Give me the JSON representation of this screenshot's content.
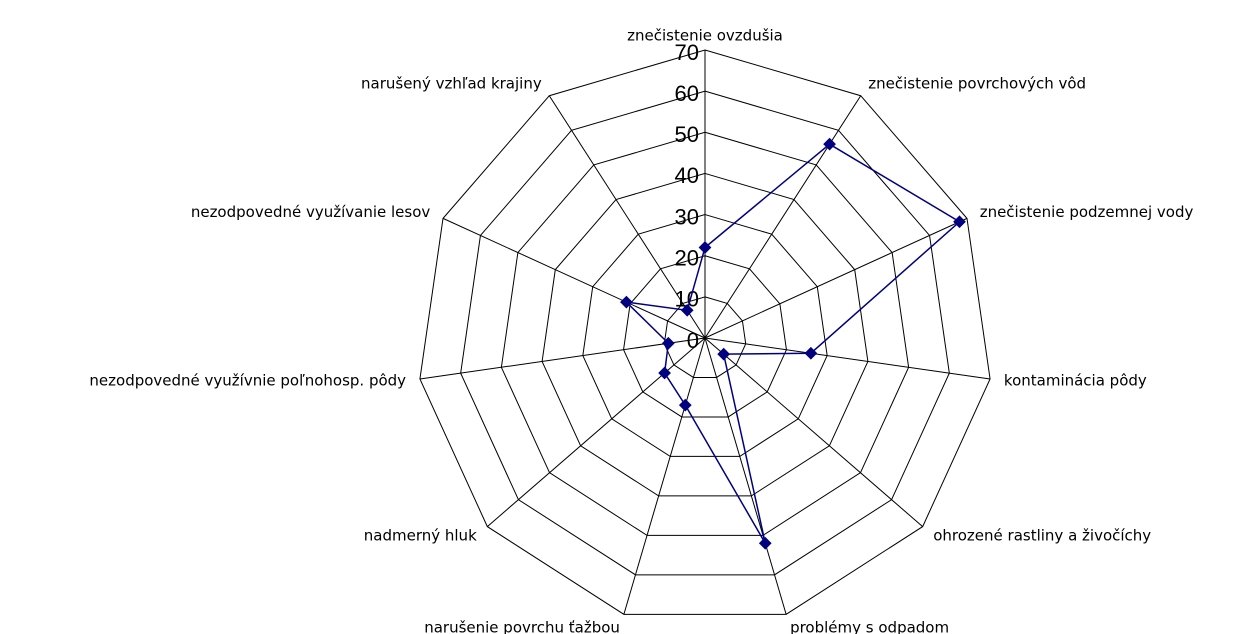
{
  "chart_data": {
    "type": "radar",
    "categories": [
      "znečistenie ovzdušia",
      "znečistenie povrchových vôd",
      "znečistenie podzemnej vody",
      "kontaminácia pôdy",
      "ohrozené rastliny a živočíchy",
      "problémy s odpadom",
      "narušenie povrchu ťažbou",
      "nadmerný hluk",
      "nezodpovedné využívnie poľnohosp. pôdy",
      "nezodpovedné využívanie lesov",
      "narušený vzhľad krajiny"
    ],
    "series": [
      {
        "color": "#000080",
        "values": [
          22,
          56,
          68,
          26,
          6,
          52,
          17,
          13,
          9,
          21,
          8
        ]
      }
    ],
    "ylim": [
      0,
      70
    ],
    "yticks": [
      0,
      10,
      20,
      30,
      40,
      50,
      60,
      70
    ],
    "grid": true
  }
}
